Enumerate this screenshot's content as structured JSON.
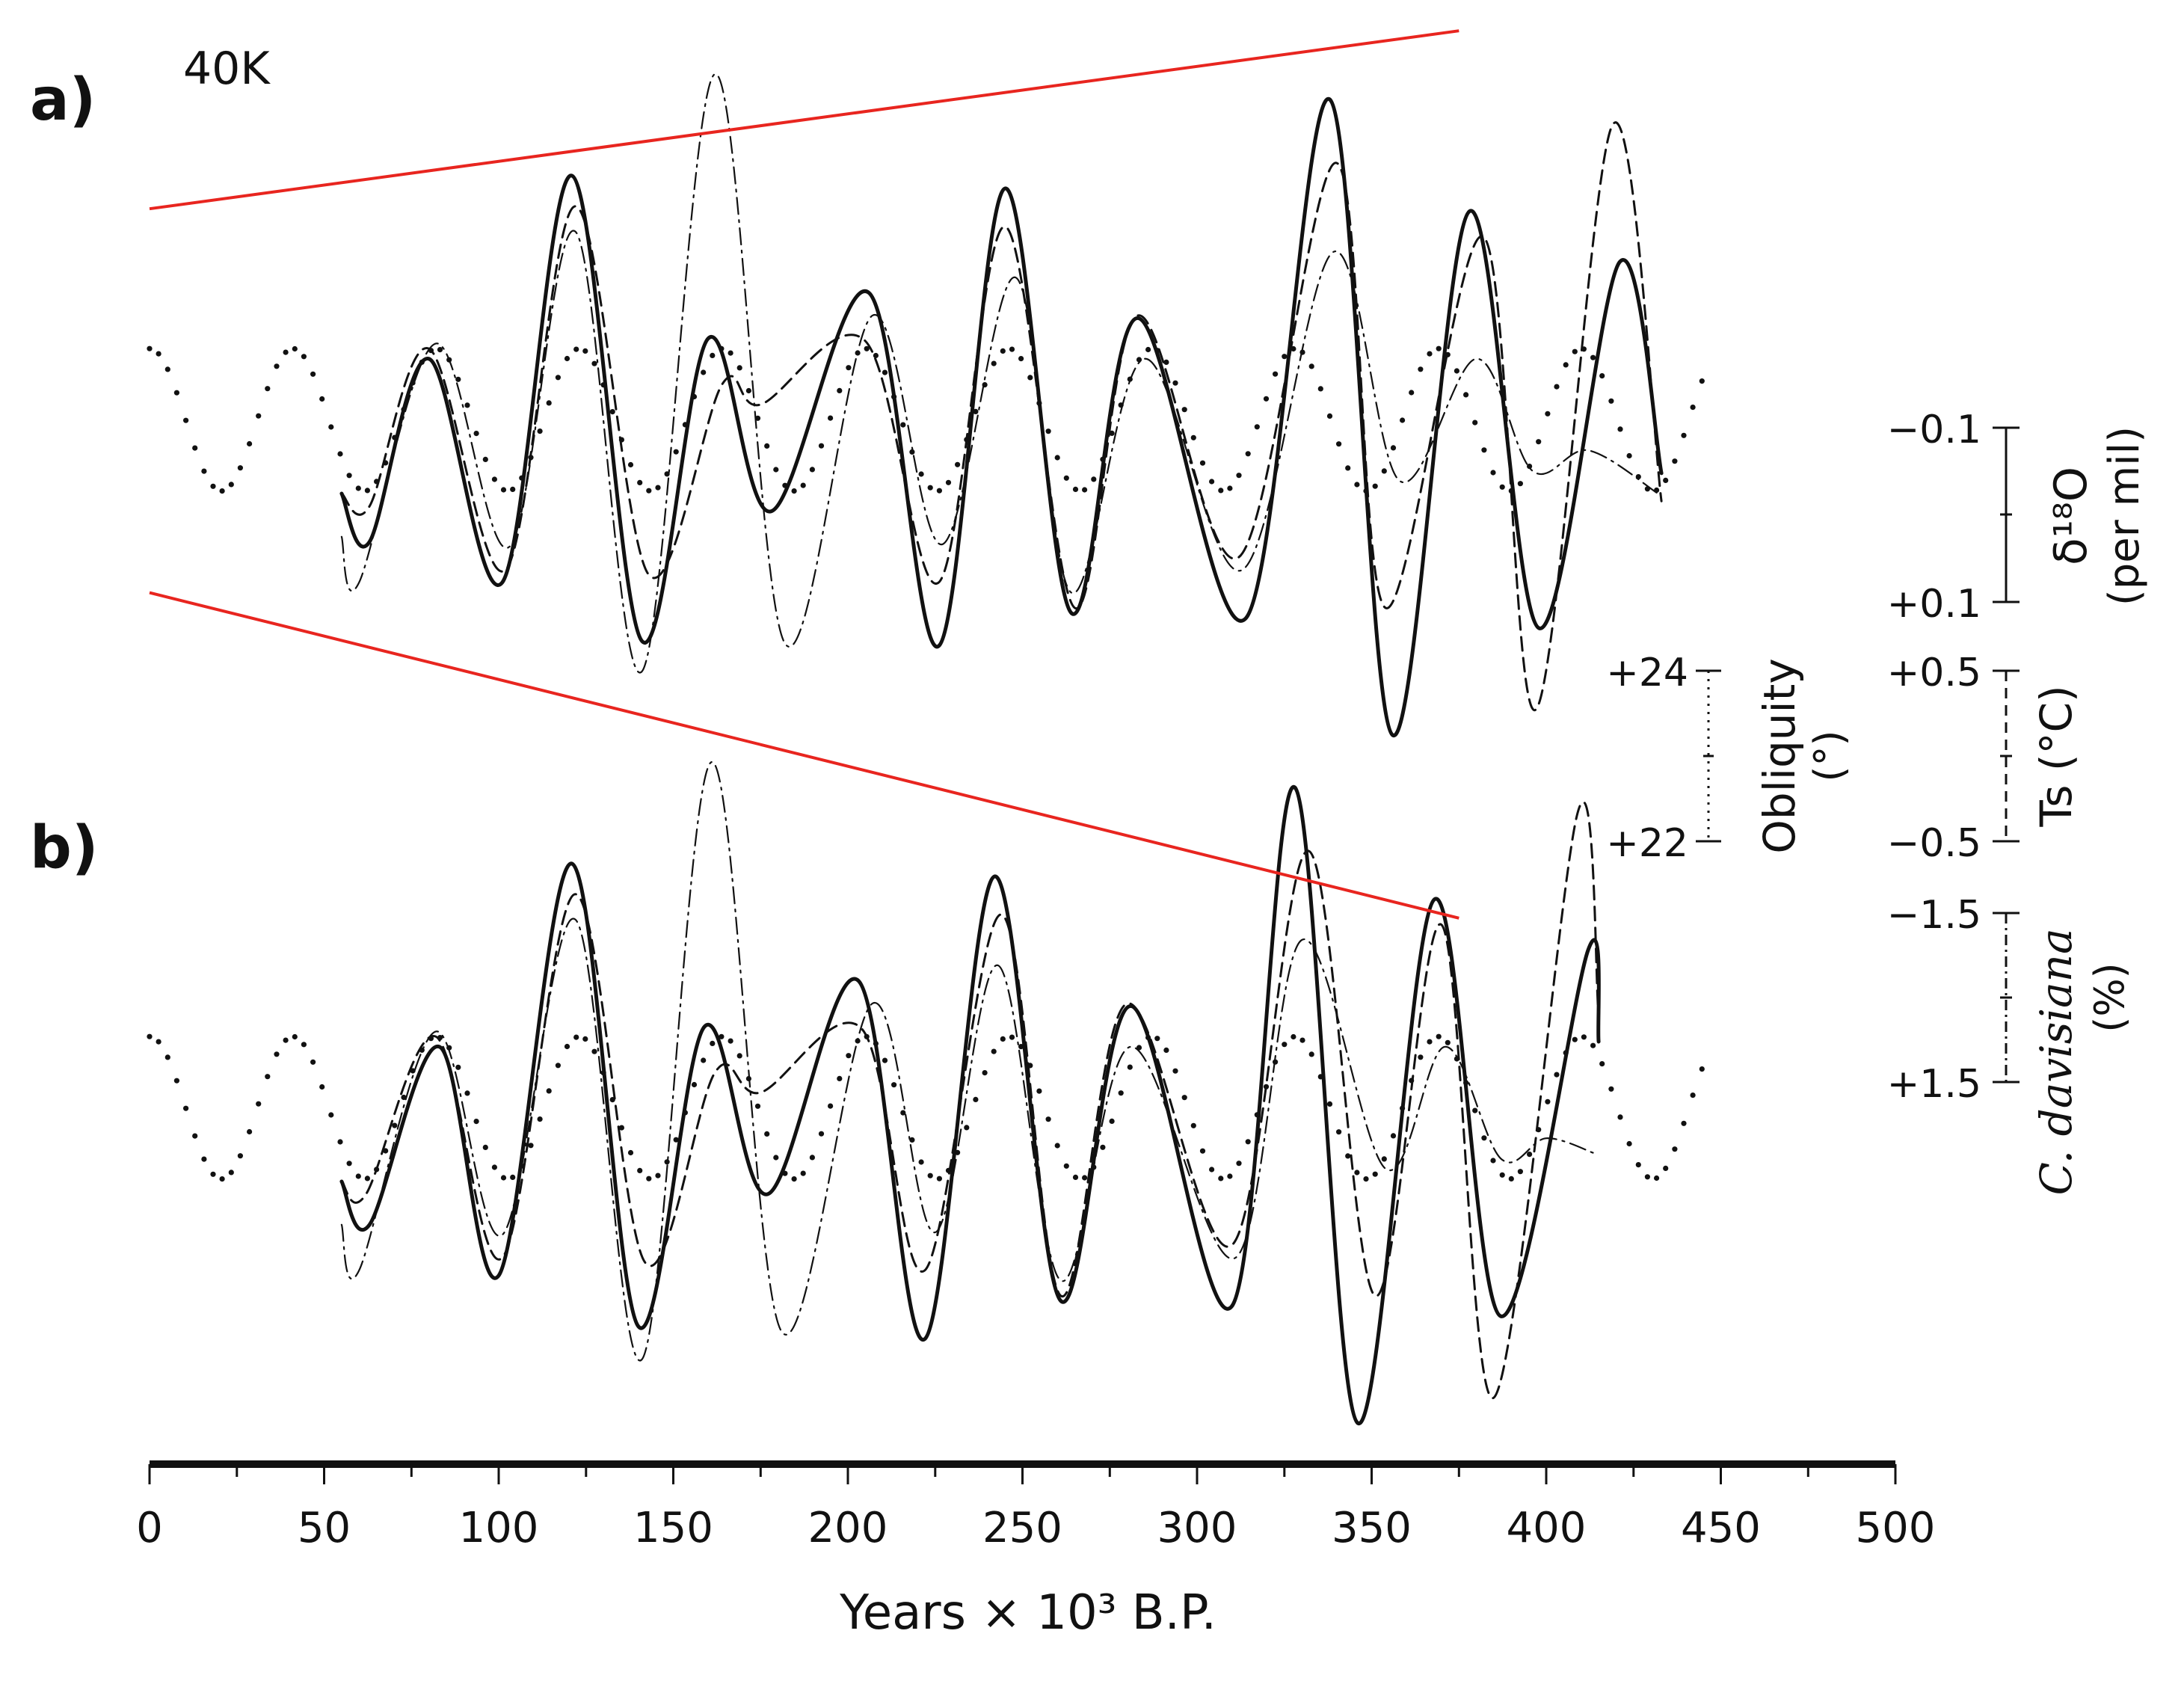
{
  "figure": {
    "panel_a_label": "a)",
    "panel_b_label": "b)",
    "panel_a_note": "40K"
  },
  "chart_data": [
    {
      "type": "line",
      "panel": "a)",
      "annotation": "40K",
      "xlabel": "Years × 10³ B.P.",
      "xlim": [
        0,
        500
      ],
      "x_ticks": [
        0,
        50,
        100,
        150,
        200,
        250,
        300,
        350,
        400,
        450,
        500
      ],
      "series": [
        {
          "style": "solid",
          "x": [
            55,
            63,
            80,
            101,
            121,
            141,
            160,
            178,
            206,
            226,
            245,
            264,
            283,
            314,
            338,
            356,
            378,
            398,
            421,
            433
          ],
          "values": [
            -0.25,
            -0.44,
            0.28,
            -0.6,
            1.0,
            -0.83,
            0.36,
            -0.32,
            0.54,
            -0.85,
            0.95,
            -0.72,
            0.44,
            -0.74,
            1.3,
            -1.2,
            0.86,
            -0.78,
            0.66,
            -0.17
          ]
        },
        {
          "style": "dashed",
          "x": [
            55,
            63,
            80,
            102,
            122,
            143,
            164,
            175,
            205,
            226,
            245,
            265,
            283,
            312,
            340,
            354,
            382,
            397,
            419,
            433
          ],
          "values": [
            -0.25,
            -0.3,
            0.32,
            -0.55,
            0.88,
            -0.57,
            0.18,
            0.1,
            0.35,
            -0.6,
            0.8,
            -0.7,
            0.45,
            -0.5,
            1.05,
            -0.7,
            0.76,
            -1.1,
            1.2,
            -0.28
          ]
        },
        {
          "style": "dash-dot",
          "x": [
            55,
            60,
            82,
            103,
            122,
            141,
            162,
            182,
            207,
            227,
            248,
            264,
            285,
            313,
            339,
            358,
            380,
            396,
            412,
            432
          ],
          "values": [
            -0.42,
            -0.6,
            0.34,
            -0.46,
            0.78,
            -0.95,
            1.4,
            -0.84,
            0.45,
            -0.45,
            0.6,
            -0.64,
            0.28,
            -0.55,
            0.7,
            -0.2,
            0.28,
            -0.16,
            -0.08,
            -0.25
          ]
        },
        {
          "style": "dotted",
          "period_kyr": 41,
          "x_start": 0,
          "x_end": 445
        }
      ],
      "envelope_color": "#e8251f",
      "envelope_lines": [
        {
          "x": [
            0,
            375
          ],
          "values": [
            0.87,
            1.57
          ]
        },
        {
          "x": [
            0,
            375
          ],
          "values": [
            -0.64,
            -1.92
          ]
        }
      ]
    },
    {
      "type": "line",
      "panel": "b)",
      "xlabel": "Years × 10³ B.P.",
      "xlim": [
        0,
        500
      ],
      "x_ticks": [
        0,
        50,
        100,
        150,
        200,
        250,
        300,
        350,
        400,
        450,
        500
      ],
      "series": [
        {
          "style": "solid",
          "x": [
            55,
            63,
            83,
            100,
            121,
            140,
            159,
            177,
            203,
            222,
            242,
            261,
            281,
            310,
            328,
            346,
            368,
            387,
            412,
            415
          ],
          "values": [
            -0.25,
            -0.42,
            0.28,
            -0.62,
            1.0,
            -0.82,
            0.36,
            -0.3,
            0.54,
            -0.87,
            0.95,
            -0.72,
            0.44,
            -0.74,
            1.3,
            -1.2,
            0.86,
            -0.78,
            0.66,
            0.3
          ]
        },
        {
          "style": "dashed",
          "x": [
            55,
            62,
            82,
            101,
            122,
            142,
            162,
            175,
            204,
            222,
            244,
            261,
            280,
            310,
            332,
            351,
            370,
            385,
            409,
            415
          ],
          "values": [
            -0.25,
            -0.3,
            0.32,
            -0.55,
            0.88,
            -0.57,
            0.18,
            0.1,
            0.35,
            -0.6,
            0.8,
            -0.7,
            0.45,
            -0.5,
            1.05,
            -0.7,
            0.76,
            -1.1,
            1.2,
            0.4
          ]
        },
        {
          "style": "dash-dot",
          "x": [
            55,
            60,
            82,
            101,
            122,
            141,
            161,
            181,
            207,
            225,
            243,
            261,
            281,
            311,
            330,
            354,
            371,
            387,
            400,
            414
          ],
          "values": [
            -0.42,
            -0.6,
            0.34,
            -0.46,
            0.78,
            -0.95,
            1.4,
            -0.84,
            0.45,
            -0.45,
            0.6,
            -0.64,
            0.28,
            -0.55,
            0.7,
            -0.2,
            0.28,
            -0.16,
            -0.08,
            -0.14
          ]
        },
        {
          "style": "dotted",
          "period_kyr": 41,
          "x_start": 0,
          "x_end": 445
        }
      ]
    }
  ],
  "scales": {
    "d18o": {
      "top": "−0.1",
      "bottom": "+0.1",
      "label_line1": "δ¹⁸O",
      "label_line2": "(per mil)"
    },
    "obliquity": {
      "top": "+24",
      "bottom": "+22",
      "label_line1": "Obliquity",
      "label_line2": "(°)"
    },
    "ts": {
      "top": "+0.5",
      "bottom": "−0.5",
      "label": "Ts (°C)"
    },
    "davisiana": {
      "top": "−1.5",
      "bottom": "+1.5",
      "label_line1": "C. davisiana",
      "label_line2": "(%)"
    }
  },
  "axis": {
    "tick_labels": [
      "0",
      "50",
      "100",
      "150",
      "200",
      "250",
      "300",
      "350",
      "400",
      "450",
      "500"
    ],
    "xlabel": "Years × 10³ B.P."
  }
}
